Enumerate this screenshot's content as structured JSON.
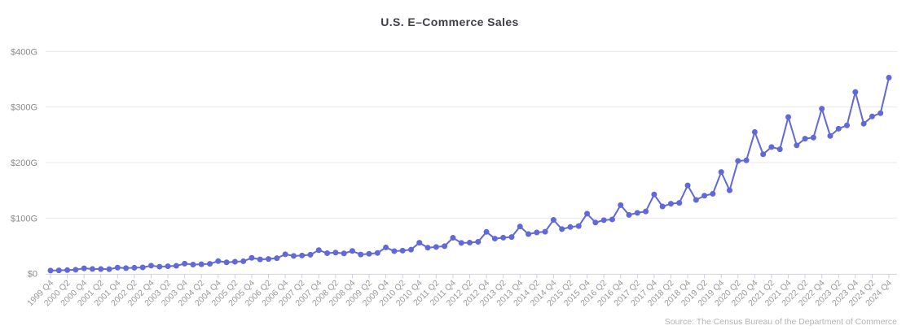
{
  "header": {
    "title": "U.S. E–Commerce Sales"
  },
  "footer": {
    "source_note": "Source: The Census Bureau of the Department of Commerce"
  },
  "chart_data": {
    "type": "line",
    "title": "U.S. E–Commerce Sales",
    "xlabel": "",
    "ylabel": "",
    "ylim": [
      0,
      400
    ],
    "y_ticks": [
      0,
      100,
      200,
      300,
      400
    ],
    "y_tick_labels": [
      "$0",
      "$100G",
      "$200G",
      "$300G",
      "$400G"
    ],
    "grid": "horizontal",
    "legend": "none",
    "marker": "circle",
    "x_tick_labels": [
      "1999 Q4",
      "2000 Q2",
      "2000 Q4",
      "2001 Q2",
      "2001 Q4",
      "2002 Q2",
      "2002 Q4",
      "2003 Q2",
      "2003 Q4",
      "2004 Q2",
      "2004 Q4",
      "2005 Q2",
      "2005 Q4",
      "2006 Q2",
      "2006 Q4",
      "2007 Q2",
      "2007 Q4",
      "2008 Q2",
      "2008 Q4",
      "2009 Q2",
      "2009 Q4",
      "2010 Q2",
      "2010 Q4",
      "2011 Q2",
      "2011 Q4",
      "2012 Q2",
      "2012 Q4",
      "2013 Q2",
      "2013 Q4",
      "2014 Q2",
      "2014 Q4",
      "2015 Q2",
      "2015 Q4",
      "2016 Q2",
      "2016 Q4",
      "2017 Q2",
      "2017 Q4",
      "2018 Q2",
      "2018 Q4",
      "2019 Q2",
      "2019 Q4",
      "2020 Q2",
      "2020 Q4",
      "2021 Q2",
      "2021 Q4",
      "2022 Q2",
      "2022 Q4",
      "2023 Q2",
      "2023 Q4",
      "2024 Q2",
      "2024 Q4"
    ],
    "x": [
      "1999 Q4",
      "2000 Q1",
      "2000 Q2",
      "2000 Q3",
      "2000 Q4",
      "2001 Q1",
      "2001 Q2",
      "2001 Q3",
      "2001 Q4",
      "2002 Q1",
      "2002 Q2",
      "2002 Q3",
      "2002 Q4",
      "2003 Q1",
      "2003 Q2",
      "2003 Q3",
      "2003 Q4",
      "2004 Q1",
      "2004 Q2",
      "2004 Q3",
      "2004 Q4",
      "2005 Q1",
      "2005 Q2",
      "2005 Q3",
      "2005 Q4",
      "2006 Q1",
      "2006 Q2",
      "2006 Q3",
      "2006 Q4",
      "2007 Q1",
      "2007 Q2",
      "2007 Q3",
      "2007 Q4",
      "2008 Q1",
      "2008 Q2",
      "2008 Q3",
      "2008 Q4",
      "2009 Q1",
      "2009 Q2",
      "2009 Q3",
      "2009 Q4",
      "2010 Q1",
      "2010 Q2",
      "2010 Q3",
      "2010 Q4",
      "2011 Q1",
      "2011 Q2",
      "2011 Q3",
      "2011 Q4",
      "2012 Q1",
      "2012 Q2",
      "2012 Q3",
      "2012 Q4",
      "2013 Q1",
      "2013 Q2",
      "2013 Q3",
      "2013 Q4",
      "2014 Q1",
      "2014 Q2",
      "2014 Q3",
      "2014 Q4",
      "2015 Q1",
      "2015 Q2",
      "2015 Q3",
      "2015 Q4",
      "2016 Q1",
      "2016 Q2",
      "2016 Q3",
      "2016 Q4",
      "2017 Q1",
      "2017 Q2",
      "2017 Q3",
      "2017 Q4",
      "2018 Q1",
      "2018 Q2",
      "2018 Q3",
      "2018 Q4",
      "2019 Q1",
      "2019 Q2",
      "2019 Q3",
      "2019 Q4",
      "2020 Q1",
      "2020 Q2",
      "2020 Q3",
      "2020 Q4",
      "2021 Q1",
      "2021 Q2",
      "2021 Q3",
      "2021 Q4",
      "2022 Q1",
      "2022 Q2",
      "2022 Q3",
      "2022 Q4",
      "2023 Q1",
      "2023 Q2",
      "2023 Q3",
      "2023 Q4",
      "2024 Q1",
      "2024 Q2",
      "2024 Q3",
      "2024 Q4"
    ],
    "values_unit": "$G (billions)",
    "values": [
      5.4,
      5.8,
      6.3,
      7.0,
      9.5,
      8.3,
      8.2,
      8.0,
      10.8,
      9.9,
      10.5,
      11.1,
      14.3,
      12.5,
      13.2,
      14.0,
      17.9,
      16.3,
      16.8,
      17.6,
      22.5,
      20.3,
      21.4,
      22.2,
      28.3,
      25.6,
      26.3,
      27.7,
      34.7,
      31.8,
      32.6,
      34.0,
      42.2,
      36.8,
      37.9,
      36.4,
      40.8,
      34.4,
      35.7,
      37.1,
      47.1,
      40.5,
      41.4,
      43.1,
      55.6,
      46.7,
      48.0,
      49.4,
      64.5,
      55.2,
      55.8,
      57.2,
      75.1,
      63.0,
      64.8,
      65.8,
      84.8,
      71.2,
      74.1,
      75.4,
      96.7,
      80.1,
      83.9,
      85.6,
      107.9,
      92.0,
      96.3,
      97.6,
      123.3,
      105.8,
      109.4,
      111.9,
      142.5,
      120.9,
      125.9,
      127.3,
      158.8,
      132.7,
      140.3,
      143.8,
      183.0,
      150.0,
      203.0,
      204.0,
      255.0,
      215.0,
      228.0,
      224.0,
      282.0,
      231.0,
      243.0,
      245.0,
      297.0,
      248.0,
      261.0,
      267.0,
      327.0,
      270.0,
      283.0,
      289.0,
      353.0
    ],
    "colors": {
      "series": "#6168d8",
      "gridline": "#e8e8e8",
      "axis_line": "#ccd2e6",
      "y_tick_label": "#8a8a8e",
      "x_tick_label": "#999999",
      "title": "#3f3f46",
      "source": "#b4b4b8",
      "background": "#ffffff"
    }
  }
}
